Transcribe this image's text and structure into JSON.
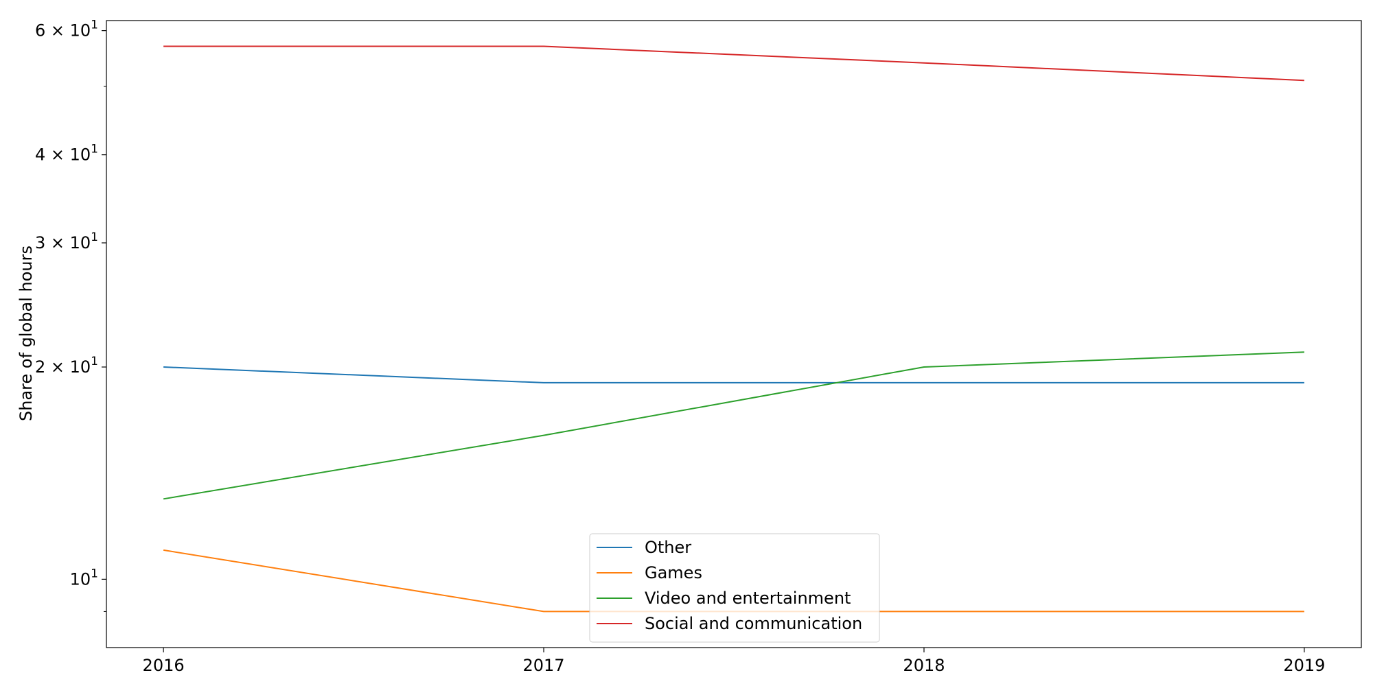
{
  "chart_data": {
    "type": "line",
    "title": "",
    "xlabel": "",
    "ylabel": "Share of global hours",
    "x": [
      2016,
      2017,
      2018,
      2019
    ],
    "x_tick_labels": [
      "2016",
      "2017",
      "2018",
      "2019"
    ],
    "xlim": [
      2015.85,
      2019.15
    ],
    "y_scale": "log",
    "ylim": [
      8.0,
      62.0
    ],
    "y_major_ticks": [
      {
        "value": 10,
        "base": "10",
        "exp": "1",
        "mult": ""
      },
      {
        "value": 20,
        "base": "10",
        "exp": "1",
        "mult": "2 × "
      },
      {
        "value": 30,
        "base": "10",
        "exp": "1",
        "mult": "3 × "
      },
      {
        "value": 40,
        "base": "10",
        "exp": "1",
        "mult": "4 × "
      },
      {
        "value": 60,
        "base": "10",
        "exp": "1",
        "mult": "6 × "
      }
    ],
    "y_minor_ticks": [
      9,
      50
    ],
    "grid": false,
    "legend_position": "lower center",
    "series": [
      {
        "name": "Other",
        "color": "#1f77b4",
        "values": [
          20,
          19,
          19,
          19
        ]
      },
      {
        "name": "Games",
        "color": "#ff7f0e",
        "values": [
          11,
          9,
          9,
          9
        ]
      },
      {
        "name": "Video and entertainment",
        "color": "#2ca02c",
        "values": [
          13,
          16,
          20,
          21
        ]
      },
      {
        "name": "Social and communication",
        "color": "#d62728",
        "values": [
          57,
          57,
          54,
          51
        ]
      }
    ]
  }
}
